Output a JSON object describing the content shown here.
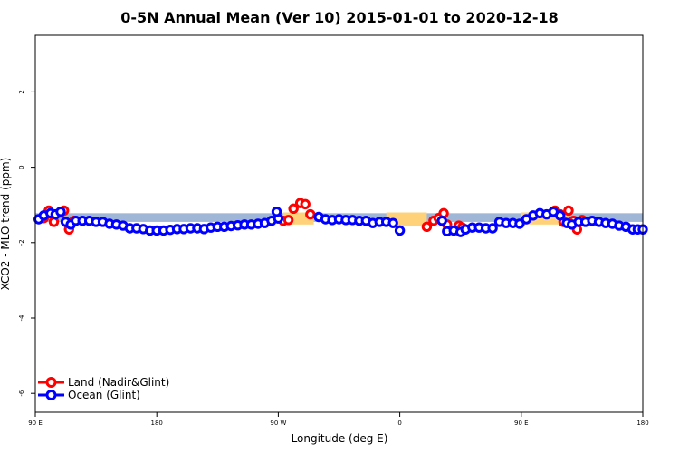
{
  "chart_data": {
    "type": "scatter",
    "title": "0-5N Annual Mean (Ver 10)   2015-01-01 to 2020-12-18",
    "xlabel": "Longitude (deg E)",
    "ylabel": "XCO2 - MLO trend (ppm)",
    "xlim": [
      90,
      270
    ],
    "ylim": [
      -6.5,
      3.5
    ],
    "x_ticks": [
      {
        "value": 90,
        "label": "90 E"
      },
      {
        "value": 126,
        "label": "180"
      },
      {
        "value": 162,
        "label": "90 W"
      },
      {
        "value": 198,
        "label": "0"
      },
      {
        "value": 234,
        "label": "90 E"
      },
      {
        "value": 270,
        "label": "180"
      }
    ],
    "y_ticks": [
      {
        "value": 2,
        "label": "2"
      },
      {
        "value": 0,
        "label": "0"
      },
      {
        "value": -2,
        "label": "-2"
      },
      {
        "value": -4,
        "label": "-4"
      },
      {
        "value": -6,
        "label": "-6"
      }
    ],
    "legend": {
      "position": "bottom-left",
      "entries": [
        {
          "label": "Land (Nadir&Glint)",
          "color": "#ff0000"
        },
        {
          "label": "Ocean (Glint)",
          "color": "#0000ff"
        }
      ]
    },
    "bands": {
      "ocean": {
        "color": "#9fb6d6",
        "x": [
          90,
          270
        ],
        "y": [
          -1.22,
          -1.45
        ]
      },
      "land": [
        {
          "color": "#ffd27a",
          "x": [
            163.5,
            172.5
          ],
          "y": [
            -1.2,
            -1.52
          ]
        },
        {
          "color": "#ffd27a",
          "x": [
            194,
            206
          ],
          "y": [
            -1.2,
            -1.55
          ]
        },
        {
          "color": "#ffd27a",
          "x": [
            234,
            248
          ],
          "y": [
            -1.2,
            -1.52
          ]
        }
      ]
    },
    "series": [
      {
        "name": "Land (Nadir&Glint)",
        "color": "#ff0000",
        "points": [
          [
            92.5,
            -1.35
          ],
          [
            94,
            -1.15
          ],
          [
            95.5,
            -1.45
          ],
          [
            97.5,
            -1.2
          ],
          [
            98.5,
            -1.15
          ],
          [
            100,
            -1.65
          ],
          [
            101.5,
            -1.42
          ],
          [
            163.5,
            -1.42
          ],
          [
            165,
            -1.4
          ],
          [
            166.5,
            -1.1
          ],
          [
            168.5,
            -0.95
          ],
          [
            170,
            -0.98
          ],
          [
            171.5,
            -1.25
          ],
          [
            206,
            -1.58
          ],
          [
            208,
            -1.42
          ],
          [
            209.5,
            -1.35
          ],
          [
            211,
            -1.22
          ],
          [
            212,
            -1.52
          ],
          [
            215.5,
            -1.55
          ],
          [
            216.5,
            -1.6
          ],
          [
            244,
            -1.15
          ],
          [
            245.5,
            -1.25
          ],
          [
            246.5,
            -1.45
          ],
          [
            248,
            -1.15
          ],
          [
            249.5,
            -1.42
          ],
          [
            250.5,
            -1.65
          ],
          [
            252,
            -1.4
          ]
        ]
      },
      {
        "name": "Ocean (Glint)",
        "color": "#0000ff",
        "points": [
          [
            91,
            -1.38
          ],
          [
            92.5,
            -1.28
          ],
          [
            94.5,
            -1.22
          ],
          [
            96,
            -1.25
          ],
          [
            97.5,
            -1.18
          ],
          [
            99,
            -1.45
          ],
          [
            100.5,
            -1.52
          ],
          [
            102,
            -1.42
          ],
          [
            104,
            -1.42
          ],
          [
            106,
            -1.42
          ],
          [
            108,
            -1.45
          ],
          [
            110,
            -1.45
          ],
          [
            112,
            -1.5
          ],
          [
            114,
            -1.52
          ],
          [
            116,
            -1.55
          ],
          [
            118,
            -1.62
          ],
          [
            120,
            -1.62
          ],
          [
            122,
            -1.64
          ],
          [
            124,
            -1.68
          ],
          [
            126,
            -1.68
          ],
          [
            128,
            -1.68
          ],
          [
            130,
            -1.66
          ],
          [
            132,
            -1.64
          ],
          [
            134,
            -1.64
          ],
          [
            136,
            -1.62
          ],
          [
            138,
            -1.62
          ],
          [
            140,
            -1.64
          ],
          [
            142,
            -1.6
          ],
          [
            144,
            -1.58
          ],
          [
            146,
            -1.58
          ],
          [
            148,
            -1.56
          ],
          [
            150,
            -1.54
          ],
          [
            152,
            -1.52
          ],
          [
            154,
            -1.52
          ],
          [
            156,
            -1.5
          ],
          [
            158,
            -1.48
          ],
          [
            160,
            -1.42
          ],
          [
            162,
            -1.36
          ],
          [
            161.5,
            -1.18
          ],
          [
            174,
            -1.32
          ],
          [
            176,
            -1.38
          ],
          [
            178,
            -1.4
          ],
          [
            180,
            -1.38
          ],
          [
            182,
            -1.4
          ],
          [
            184,
            -1.4
          ],
          [
            186,
            -1.42
          ],
          [
            188,
            -1.42
          ],
          [
            190,
            -1.48
          ],
          [
            192,
            -1.45
          ],
          [
            194,
            -1.45
          ],
          [
            196,
            -1.48
          ],
          [
            198,
            -1.68
          ],
          [
            210.5,
            -1.42
          ],
          [
            212,
            -1.7
          ],
          [
            214,
            -1.68
          ],
          [
            216,
            -1.72
          ],
          [
            217.5,
            -1.65
          ],
          [
            219.5,
            -1.6
          ],
          [
            221.5,
            -1.6
          ],
          [
            223.5,
            -1.62
          ],
          [
            225.5,
            -1.62
          ],
          [
            227.5,
            -1.45
          ],
          [
            229.5,
            -1.48
          ],
          [
            231.5,
            -1.48
          ],
          [
            233.5,
            -1.5
          ],
          [
            235.5,
            -1.38
          ],
          [
            237.5,
            -1.28
          ],
          [
            239.5,
            -1.22
          ],
          [
            241.5,
            -1.25
          ],
          [
            243.5,
            -1.18
          ],
          [
            245.5,
            -1.28
          ],
          [
            247.5,
            -1.48
          ],
          [
            249,
            -1.52
          ],
          [
            251,
            -1.45
          ],
          [
            253,
            -1.45
          ],
          [
            255,
            -1.42
          ],
          [
            257,
            -1.45
          ],
          [
            259,
            -1.48
          ],
          [
            261,
            -1.5
          ],
          [
            263,
            -1.55
          ],
          [
            265,
            -1.58
          ],
          [
            267,
            -1.65
          ],
          [
            268.5,
            -1.65
          ],
          [
            270,
            -1.65
          ]
        ]
      }
    ]
  }
}
